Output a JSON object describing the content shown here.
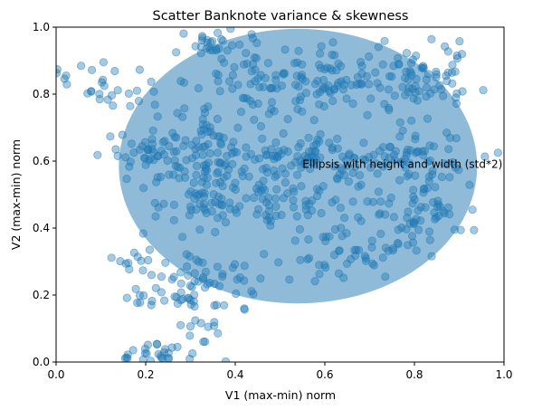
{
  "chart_data": {
    "type": "scatter",
    "title": "Scatter Banknote variance & skewness",
    "xlabel": "V1 (max-min) norm",
    "ylabel": "V2 (max-min) norm",
    "xlim": [
      0,
      1
    ],
    "ylim": [
      0,
      1
    ],
    "xticks": [
      "0.0",
      "0.2",
      "0.4",
      "0.6",
      "0.8",
      "1.0"
    ],
    "yticks": [
      "0.0",
      "0.2",
      "0.4",
      "0.6",
      "0.8",
      "1.0"
    ],
    "grid": false,
    "colors": {
      "points": "#1f77b4",
      "ellipse": "#1f77b4"
    },
    "ellipse": {
      "center": [
        0.54,
        0.585
      ],
      "width": 0.8,
      "height": 0.82
    },
    "annotation": {
      "text": "Ellipsis with height and width (std*2)",
      "x": 0.55,
      "y": 0.59
    },
    "clusters": [
      {
        "cx": 0.36,
        "cy": 0.95,
        "sx": 0.04,
        "sy": 0.03,
        "n": 30
      },
      {
        "cx": 0.07,
        "cy": 0.83,
        "sx": 0.04,
        "sy": 0.03,
        "n": 18
      },
      {
        "cx": 0.17,
        "cy": 0.8,
        "sx": 0.03,
        "sy": 0.04,
        "n": 12
      },
      {
        "cx": 0.3,
        "cy": 0.7,
        "sx": 0.05,
        "sy": 0.04,
        "n": 30
      },
      {
        "cx": 0.45,
        "cy": 0.83,
        "sx": 0.07,
        "sy": 0.06,
        "n": 60
      },
      {
        "cx": 0.62,
        "cy": 0.83,
        "sx": 0.06,
        "sy": 0.05,
        "n": 70
      },
      {
        "cx": 0.82,
        "cy": 0.85,
        "sx": 0.06,
        "sy": 0.05,
        "n": 70
      },
      {
        "cx": 0.2,
        "cy": 0.63,
        "sx": 0.05,
        "sy": 0.03,
        "n": 35
      },
      {
        "cx": 0.38,
        "cy": 0.6,
        "sx": 0.07,
        "sy": 0.04,
        "n": 60
      },
      {
        "cx": 0.57,
        "cy": 0.62,
        "sx": 0.07,
        "sy": 0.04,
        "n": 60
      },
      {
        "cx": 0.8,
        "cy": 0.61,
        "sx": 0.07,
        "sy": 0.05,
        "n": 70
      },
      {
        "cx": 0.35,
        "cy": 0.48,
        "sx": 0.08,
        "sy": 0.05,
        "n": 70
      },
      {
        "cx": 0.55,
        "cy": 0.48,
        "sx": 0.07,
        "sy": 0.05,
        "n": 60
      },
      {
        "cx": 0.8,
        "cy": 0.43,
        "sx": 0.06,
        "sy": 0.05,
        "n": 60
      },
      {
        "cx": 0.65,
        "cy": 0.32,
        "sx": 0.07,
        "sy": 0.04,
        "n": 40
      },
      {
        "cx": 0.18,
        "cy": 0.3,
        "sx": 0.03,
        "sy": 0.02,
        "n": 12
      },
      {
        "cx": 0.35,
        "cy": 0.25,
        "sx": 0.06,
        "sy": 0.04,
        "n": 45
      },
      {
        "cx": 0.25,
        "cy": 0.18,
        "sx": 0.04,
        "sy": 0.03,
        "n": 25
      },
      {
        "cx": 0.33,
        "cy": 0.1,
        "sx": 0.04,
        "sy": 0.04,
        "n": 12
      },
      {
        "cx": 0.23,
        "cy": 0.03,
        "sx": 0.04,
        "sy": 0.015,
        "n": 25
      }
    ]
  }
}
